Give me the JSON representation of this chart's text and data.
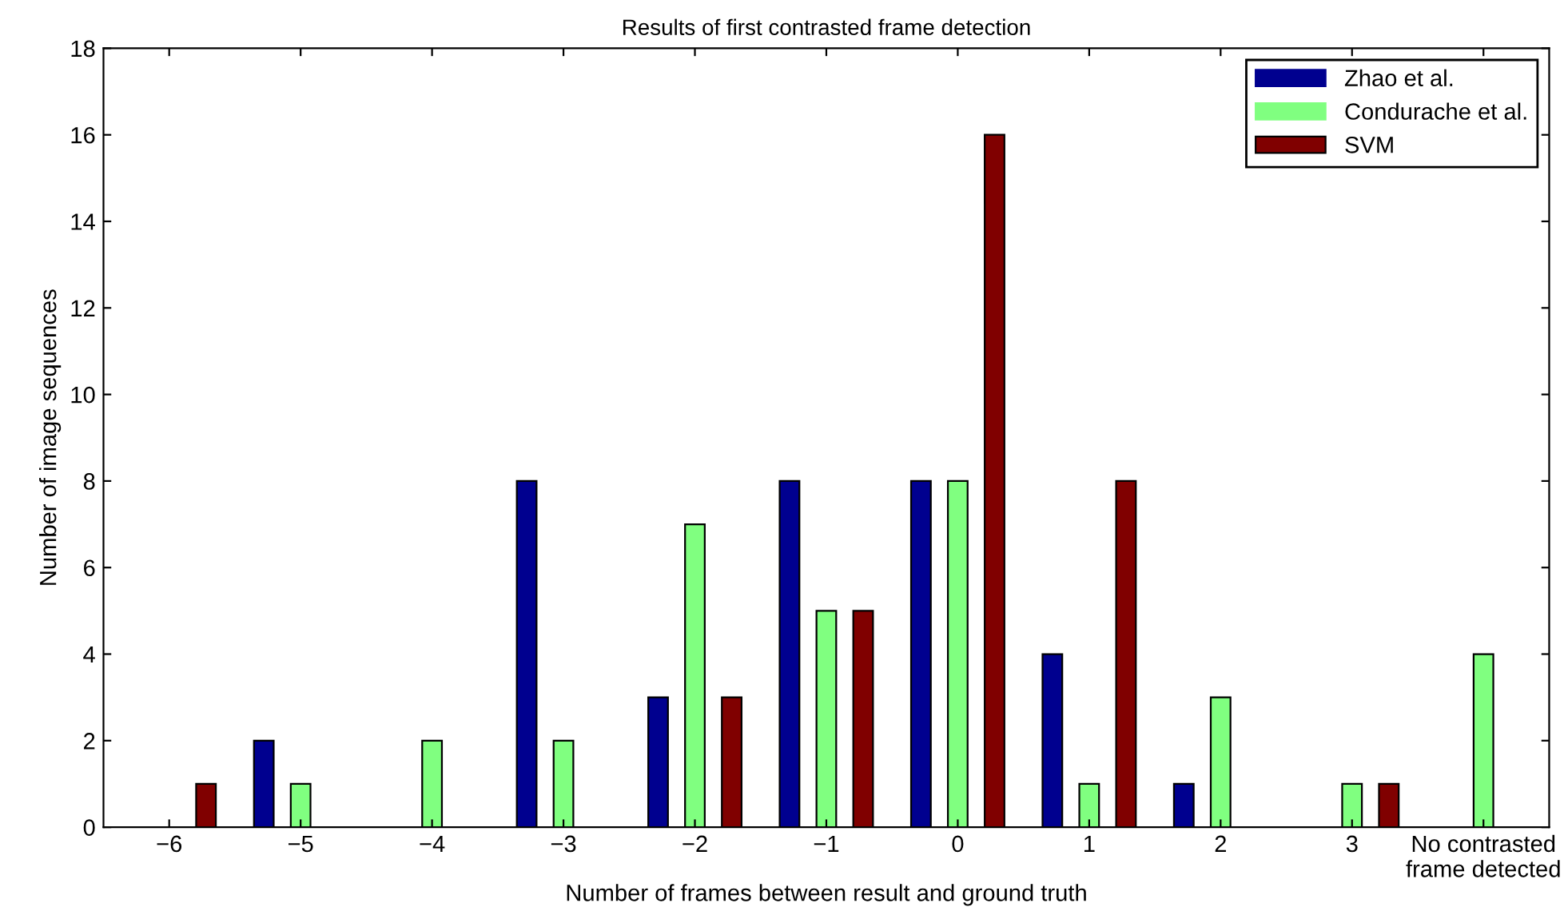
{
  "chart_data": {
    "type": "bar",
    "title": "Results of first contrasted frame detection",
    "xlabel": "Number of frames between result and ground truth",
    "ylabel": "Number of image sequences",
    "categories": [
      "−6",
      "−5",
      "−4",
      "−3",
      "−2",
      "−1",
      "0",
      "1",
      "2",
      "3",
      "No contrasted\nframe detected"
    ],
    "series": [
      {
        "name": "Zhao et al.",
        "color": "#00008f",
        "values": [
          0,
          2,
          0,
          8,
          3,
          8,
          8,
          4,
          1,
          0,
          0
        ]
      },
      {
        "name": "Condurache et al.",
        "color": "#80ff80",
        "values": [
          0,
          1,
          2,
          2,
          7,
          5,
          8,
          1,
          3,
          1,
          4
        ]
      },
      {
        "name": "SVM",
        "color": "#800000",
        "values": [
          1,
          0,
          0,
          0,
          3,
          5,
          16,
          8,
          0,
          1,
          0
        ]
      }
    ],
    "ylim": [
      0,
      18
    ],
    "yticks": [
      0,
      2,
      4,
      6,
      8,
      10,
      12,
      14,
      16,
      18
    ],
    "legend": "top right",
    "grid": false
  }
}
